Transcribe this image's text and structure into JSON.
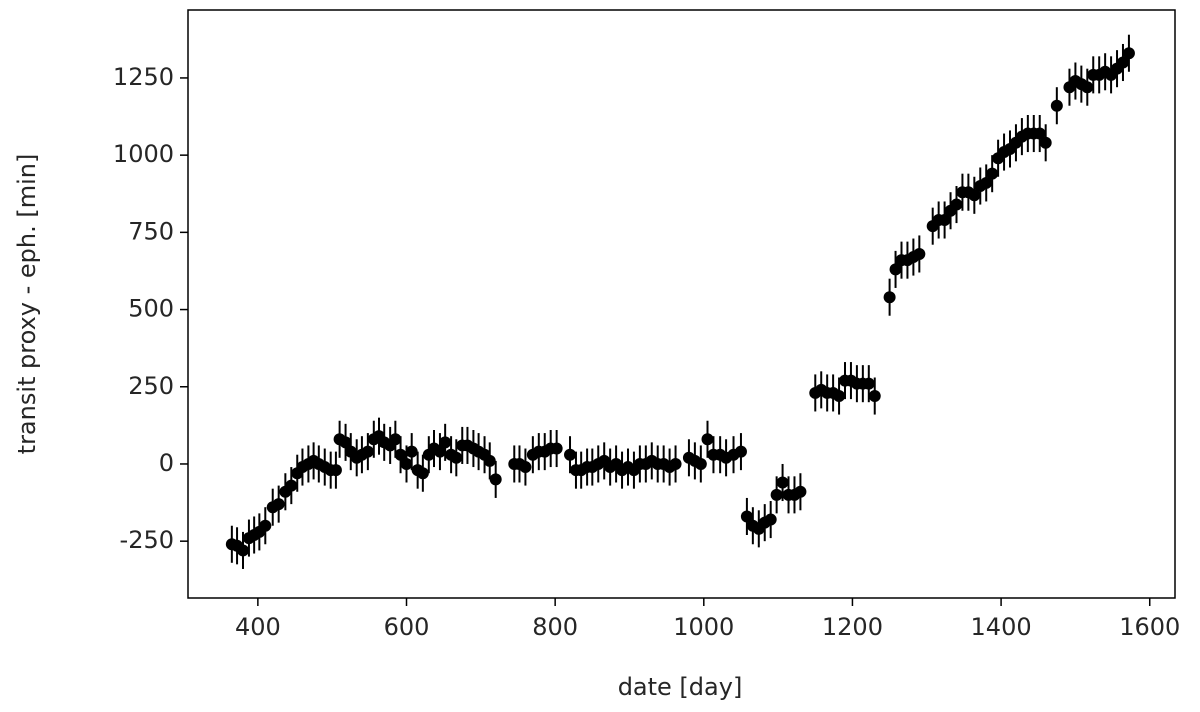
{
  "chart_data": {
    "type": "errorbar",
    "xlabel": "date [day]",
    "ylabel": "transit proxy - eph. [min]",
    "xlim": [
      306,
      1634
    ],
    "ylim": [
      -434,
      1470
    ],
    "xticks": [
      400,
      600,
      800,
      1000,
      1200,
      1400,
      1600
    ],
    "yticks": [
      -250,
      0,
      250,
      500,
      750,
      1000,
      1250
    ],
    "series": [
      {
        "color": "#000000",
        "x": [
          365,
          372,
          380,
          388,
          395,
          402,
          410,
          420,
          428,
          437,
          445,
          453,
          460,
          468,
          475,
          482,
          490,
          498,
          505,
          510,
          518,
          525,
          533,
          540,
          548,
          556,
          563,
          570,
          578,
          585,
          592,
          600,
          607,
          615,
          622,
          630,
          637,
          645,
          652,
          660,
          667,
          675,
          682,
          690,
          697,
          705,
          712,
          720,
          745,
          752,
          760,
          770,
          778,
          786,
          794,
          802,
          820,
          828,
          835,
          843,
          850,
          858,
          866,
          874,
          882,
          890,
          898,
          906,
          914,
          922,
          930,
          938,
          946,
          954,
          962,
          980,
          988,
          996,
          1005,
          1013,
          1022,
          1030,
          1040,
          1050,
          1058,
          1066,
          1074,
          1082,
          1090,
          1098,
          1106,
          1114,
          1122,
          1130,
          1150,
          1158,
          1166,
          1174,
          1182,
          1190,
          1198,
          1206,
          1214,
          1222,
          1230,
          1250,
          1258,
          1266,
          1274,
          1282,
          1290,
          1308,
          1316,
          1324,
          1332,
          1340,
          1348,
          1356,
          1364,
          1372,
          1380,
          1388,
          1396,
          1404,
          1412,
          1420,
          1428,
          1436,
          1444,
          1452,
          1460,
          1475,
          1492,
          1500,
          1508,
          1516,
          1524,
          1532,
          1540,
          1548,
          1556,
          1564,
          1572
        ],
        "values": [
          -260,
          -265,
          -280,
          -240,
          -230,
          -220,
          -200,
          -140,
          -130,
          -90,
          -70,
          -30,
          -10,
          0,
          10,
          0,
          -10,
          -20,
          -20,
          80,
          70,
          40,
          20,
          30,
          40,
          80,
          90,
          70,
          60,
          80,
          30,
          0,
          40,
          -20,
          -30,
          30,
          50,
          40,
          70,
          30,
          20,
          60,
          60,
          50,
          40,
          30,
          10,
          -50,
          0,
          0,
          -10,
          30,
          40,
          40,
          50,
          50,
          30,
          -20,
          -20,
          -10,
          -10,
          0,
          10,
          -10,
          0,
          -20,
          -10,
          -20,
          0,
          0,
          10,
          0,
          0,
          -10,
          0,
          20,
          10,
          0,
          80,
          30,
          30,
          20,
          30,
          40,
          -170,
          -200,
          -210,
          -190,
          -180,
          -100,
          -60,
          -100,
          -100,
          -90,
          230,
          240,
          230,
          230,
          220,
          270,
          270,
          260,
          260,
          260,
          220,
          540,
          630,
          660,
          660,
          670,
          680,
          770,
          790,
          790,
          820,
          840,
          880,
          880,
          870,
          900,
          910,
          940,
          990,
          1010,
          1020,
          1040,
          1060,
          1070,
          1070,
          1070,
          1040,
          1160,
          1220,
          1240,
          1230,
          1220,
          1260,
          1260,
          1270,
          1260,
          1280,
          1300,
          1330
        ],
        "yerr": [
          60,
          60,
          60,
          60,
          60,
          60,
          60,
          60,
          60,
          60,
          60,
          60,
          60,
          60,
          60,
          60,
          60,
          60,
          60,
          60,
          60,
          60,
          60,
          60,
          60,
          60,
          60,
          60,
          60,
          60,
          60,
          60,
          60,
          60,
          60,
          60,
          60,
          60,
          60,
          60,
          60,
          60,
          60,
          60,
          60,
          60,
          60,
          60,
          60,
          60,
          60,
          60,
          60,
          60,
          60,
          60,
          60,
          60,
          60,
          60,
          60,
          60,
          60,
          60,
          60,
          60,
          60,
          60,
          60,
          60,
          60,
          60,
          60,
          60,
          60,
          60,
          60,
          60,
          60,
          60,
          60,
          60,
          60,
          60,
          60,
          60,
          60,
          60,
          60,
          60,
          60,
          60,
          60,
          60,
          60,
          60,
          60,
          60,
          60,
          60,
          60,
          60,
          60,
          60,
          60,
          60,
          60,
          60,
          60,
          60,
          60,
          60,
          60,
          60,
          60,
          60,
          60,
          60,
          60,
          60,
          60,
          60,
          60,
          60,
          60,
          60,
          60,
          60,
          60,
          60,
          60,
          60,
          60,
          60,
          60,
          60,
          60,
          60,
          60,
          60,
          60,
          60,
          60
        ]
      }
    ]
  }
}
